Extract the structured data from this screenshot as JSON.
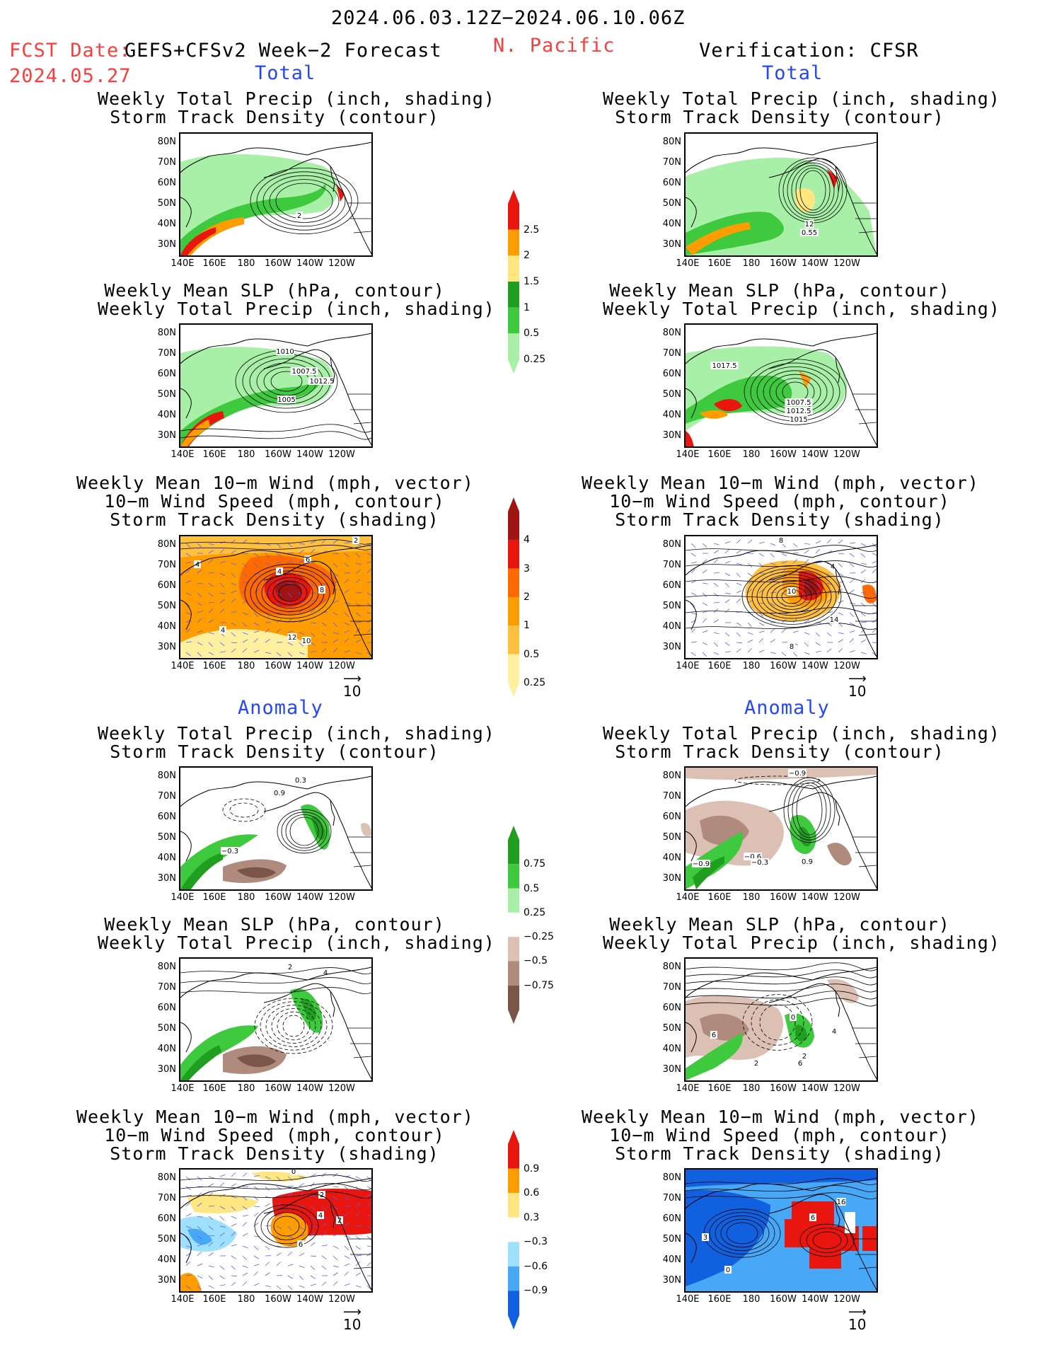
{
  "header": {
    "date_range": "2024.06.03.12Z−2024.06.10.06Z",
    "fcst_label": "FCST Date:",
    "forecast_name": "GEFS+CFSv2 Week−2 Forecast",
    "fcst_date": "2024.05.27",
    "region": "N. Pacific",
    "verification": "Verification: CFSR"
  },
  "sections": {
    "total": "Total",
    "anomaly": "Anomaly"
  },
  "panel_titles": {
    "precip_track": [
      "Weekly Total Precip (inch, shading)",
      "Storm Track Density (contour)"
    ],
    "slp_precip": [
      "Weekly Mean SLP (hPa, contour)",
      "Weekly Total Precip (inch, shading)"
    ],
    "wind_track": [
      "Weekly Mean 10−m Wind (mph, vector)",
      "10−m Wind Speed (mph, contour)",
      "Storm Track Density (shading)"
    ]
  },
  "axes": {
    "lat_ticks": [
      "80N",
      "70N",
      "60N",
      "50N",
      "40N",
      "30N"
    ],
    "lon_ticks": [
      "140E",
      "160E",
      "180",
      "160W",
      "140W",
      "120W"
    ]
  },
  "vector_ref": "10",
  "colorbars": {
    "precip_total": {
      "labels": [
        "2.5",
        "2",
        "1.5",
        "1",
        "0.5",
        "0.25"
      ],
      "colors": [
        "#e8160f",
        "#ff9d00",
        "#ffe680",
        "#1f9e1f",
        "#3ec93e",
        "#a8f0a8"
      ]
    },
    "track_total": {
      "labels": [
        "4",
        "3",
        "2",
        "1",
        "0.5",
        "0.25"
      ],
      "colors": [
        "#a01414",
        "#e8160f",
        "#ff6a00",
        "#ff9d00",
        "#ffc040",
        "#fff0a0"
      ]
    },
    "precip_anom": {
      "labels": [
        "0.75",
        "0.5",
        "0.25",
        "−0.25",
        "−0.5",
        "−0.75"
      ],
      "colors": [
        "#1f9e1f",
        "#3ec93e",
        "#a8f0a8",
        "#ffffff",
        "#dcc0b4",
        "#b08a7c",
        "#7a5548"
      ]
    },
    "track_anom": {
      "labels": [
        "0.9",
        "0.6",
        "0.3",
        "−0.3",
        "−0.6",
        "−0.9"
      ],
      "colors": [
        "#e8160f",
        "#ff9d00",
        "#ffe680",
        "#ffffff",
        "#a0e0ff",
        "#48a8f8",
        "#1060e0"
      ]
    }
  },
  "contour_labels": {
    "p1": [
      "2"
    ],
    "p2": [
      "12",
      "0.55"
    ],
    "p3": [
      "1010",
      "1007.5",
      "1012.5",
      "1005"
    ],
    "p4": [
      "1017.5",
      "1007.5",
      "1012.5",
      "1015"
    ],
    "p5": [
      "2",
      "4",
      "4",
      "6",
      "8",
      "4",
      "12",
      "10"
    ],
    "p6": [
      "8",
      "4",
      "10",
      "14",
      "8"
    ],
    "p7": [
      "0.3",
      "0.9",
      "−0.3"
    ],
    "p8": [
      "−0.9",
      "−0.9",
      "−0.6",
      "−0.3",
      "0.9"
    ],
    "p9": [
      "2",
      "4"
    ],
    "p10": [
      "0",
      "6",
      "2",
      "4",
      "2",
      "6"
    ],
    "p11": [
      "0",
      "2",
      "4",
      "2",
      "6"
    ],
    "p12": [
      "16",
      "6",
      "3",
      "0"
    ]
  }
}
